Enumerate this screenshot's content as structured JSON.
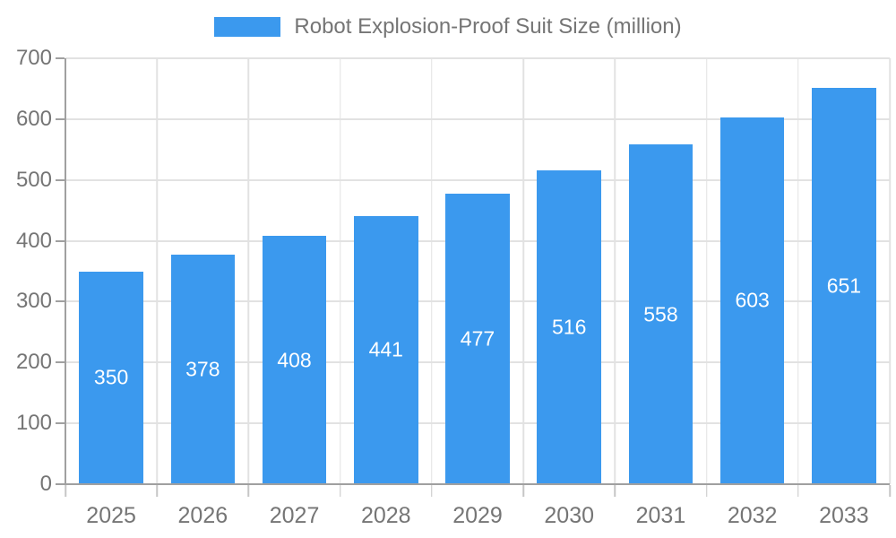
{
  "chart_data": {
    "type": "bar",
    "title": "Robot Explosion-Proof Suit Size (million)",
    "categories": [
      "2025",
      "2026",
      "2027",
      "2028",
      "2029",
      "2030",
      "2031",
      "2032",
      "2033"
    ],
    "series": [
      {
        "name": "Robot Explosion-Proof Suit Size (million)",
        "values": [
          350,
          378,
          408,
          441,
          477,
          516,
          558,
          603,
          651
        ]
      }
    ],
    "xlabel": "",
    "ylabel": "",
    "ylim": [
      0,
      700
    ],
    "yticks": [
      0,
      100,
      200,
      300,
      400,
      500,
      600,
      700
    ],
    "grid": true,
    "legend_position": "top",
    "value_labels": "inside-center",
    "colors": {
      "bar": "#3B99EE",
      "value_label": "#FFFFFF",
      "axis_label": "#757575",
      "gridline": "#E2E2E2",
      "axis_line": "#A0A0A0"
    }
  }
}
